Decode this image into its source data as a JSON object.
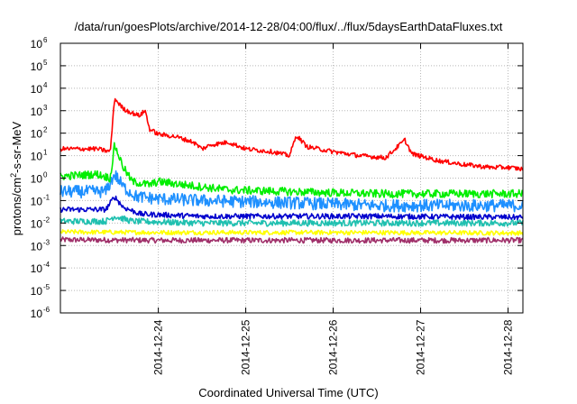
{
  "chart_data": {
    "type": "line",
    "title": "/data/run/goesPlots/archive/2014-12-28/04:00/flux/../flux/5daysEarthDataFluxes.txt",
    "xlabel": "Coordinated Universal Time (UTC)",
    "ylabel_main": "protons/cm",
    "ylabel_sup": "2",
    "ylabel_tail": "-s-sr-MeV",
    "y_scale": "log",
    "ylim": [
      1e-06,
      1000000.0
    ],
    "y_ticks": [
      {
        "base": "10",
        "exp": "-6"
      },
      {
        "base": "10",
        "exp": "-5"
      },
      {
        "base": "10",
        "exp": "-4"
      },
      {
        "base": "10",
        "exp": "-3"
      },
      {
        "base": "10",
        "exp": "-2"
      },
      {
        "base": "10",
        "exp": "-1"
      },
      {
        "base": "10",
        "exp": "0"
      },
      {
        "base": "10",
        "exp": "1"
      },
      {
        "base": "10",
        "exp": "2"
      },
      {
        "base": "10",
        "exp": "3"
      },
      {
        "base": "10",
        "exp": "4"
      },
      {
        "base": "10",
        "exp": "5"
      },
      {
        "base": "10",
        "exp": "6"
      }
    ],
    "x_days_range": [
      22.88,
      28.17
    ],
    "x_ticks": [
      {
        "day": 24,
        "label": "2014-12-24"
      },
      {
        "day": 25,
        "label": "2014-12-25"
      },
      {
        "day": 26,
        "label": "2014-12-26"
      },
      {
        "day": 27,
        "label": "2014-12-27"
      },
      {
        "day": 28,
        "label": "2014-12-28"
      }
    ],
    "grid": true,
    "series": [
      {
        "color": "#ff0000",
        "noise": 0.1,
        "points": [
          [
            22.88,
            20
          ],
          [
            23.3,
            20
          ],
          [
            23.45,
            15
          ],
          [
            23.5,
            3500
          ],
          [
            23.6,
            1200
          ],
          [
            23.7,
            800
          ],
          [
            23.78,
            600
          ],
          [
            23.85,
            1000
          ],
          [
            23.9,
            150
          ],
          [
            24.0,
            90
          ],
          [
            24.2,
            70
          ],
          [
            24.4,
            40
          ],
          [
            24.5,
            20
          ],
          [
            24.6,
            30
          ],
          [
            24.8,
            40
          ],
          [
            25.0,
            20
          ],
          [
            25.3,
            15
          ],
          [
            25.5,
            10
          ],
          [
            25.58,
            80
          ],
          [
            25.7,
            25
          ],
          [
            26.0,
            15
          ],
          [
            26.3,
            10
          ],
          [
            26.6,
            8
          ],
          [
            26.82,
            50
          ],
          [
            26.9,
            12
          ],
          [
            27.2,
            6
          ],
          [
            27.5,
            4
          ],
          [
            27.8,
            3
          ],
          [
            28.0,
            3
          ],
          [
            28.17,
            2.5
          ]
        ]
      },
      {
        "color": "#00ee00",
        "noise": 0.18,
        "points": [
          [
            22.88,
            1.2
          ],
          [
            23.3,
            1.5
          ],
          [
            23.45,
            1.0
          ],
          [
            23.5,
            30
          ],
          [
            23.6,
            3
          ],
          [
            23.7,
            0.7
          ],
          [
            23.9,
            0.5
          ],
          [
            24.0,
            0.7
          ],
          [
            24.3,
            0.5
          ],
          [
            24.8,
            0.3
          ],
          [
            25.5,
            0.25
          ],
          [
            26.5,
            0.2
          ],
          [
            27.2,
            0.2
          ],
          [
            28.17,
            0.2
          ]
        ]
      },
      {
        "color": "#1e90ff",
        "noise": 0.28,
        "points": [
          [
            22.88,
            0.25
          ],
          [
            23.4,
            0.25
          ],
          [
            23.5,
            1.5
          ],
          [
            23.6,
            0.4
          ],
          [
            23.75,
            0.15
          ],
          [
            24.0,
            0.12
          ],
          [
            24.5,
            0.1
          ],
          [
            25.5,
            0.08
          ],
          [
            26.5,
            0.06
          ],
          [
            27.5,
            0.06
          ],
          [
            28.17,
            0.06
          ]
        ]
      },
      {
        "color": "#0000cd",
        "noise": 0.12,
        "points": [
          [
            22.88,
            0.04
          ],
          [
            23.4,
            0.04
          ],
          [
            23.5,
            0.15
          ],
          [
            23.6,
            0.05
          ],
          [
            23.8,
            0.025
          ],
          [
            24.5,
            0.02
          ],
          [
            25.5,
            0.02
          ],
          [
            26.5,
            0.02
          ],
          [
            28.17,
            0.018
          ]
        ]
      },
      {
        "color": "#20c0b0",
        "noise": 0.14,
        "points": [
          [
            22.88,
            0.012
          ],
          [
            23.4,
            0.012
          ],
          [
            23.5,
            0.02
          ],
          [
            23.7,
            0.012
          ],
          [
            24.5,
            0.01
          ],
          [
            26.0,
            0.01
          ],
          [
            28.17,
            0.01
          ]
        ]
      },
      {
        "color": "#ffff00",
        "noise": 0.1,
        "points": [
          [
            22.88,
            0.004
          ],
          [
            24.0,
            0.0038
          ],
          [
            26.0,
            0.0038
          ],
          [
            28.17,
            0.0036
          ]
        ]
      },
      {
        "color": "#a0306a",
        "noise": 0.12,
        "points": [
          [
            22.88,
            0.0018
          ],
          [
            24.0,
            0.0017
          ],
          [
            26.0,
            0.0017
          ],
          [
            28.17,
            0.0017
          ]
        ]
      }
    ]
  }
}
